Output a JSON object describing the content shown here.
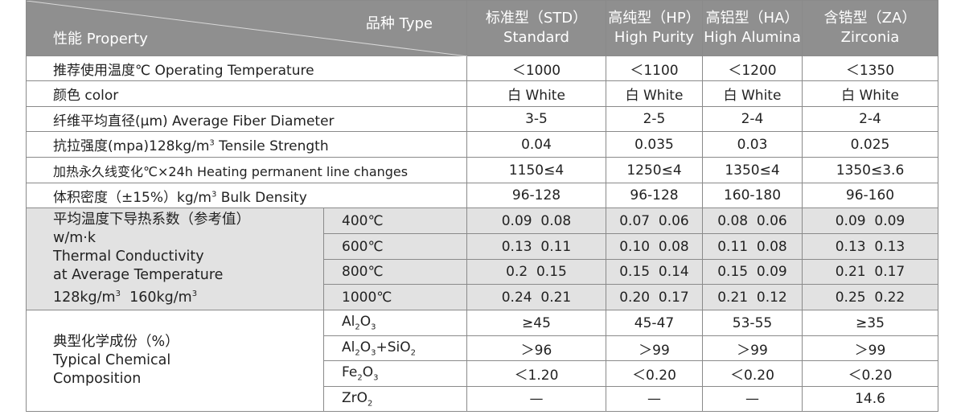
{
  "header": {
    "type_label": "品种 Type",
    "property_label": "性能 Property",
    "columns": [
      {
        "zh": "标准型（STD）",
        "en": "Standard"
      },
      {
        "zh": "高纯型（HP）",
        "en": "High Purity"
      },
      {
        "zh": "高铝型（HA）",
        "en": "High Alumina"
      },
      {
        "zh": "含锆型（ZA）",
        "en": "Zirconia"
      }
    ]
  },
  "rows": [
    {
      "prop": "推荐使用温度℃ Operating Temperature",
      "values": [
        "＜1000",
        "＜1100",
        "＜1200",
        "＜1350"
      ]
    },
    {
      "prop": "颜色 color",
      "values": [
        "白 White",
        "白 White",
        "白 White",
        "白 White"
      ]
    },
    {
      "prop": "纤维平均直径(μm) Average Fiber Diameter",
      "values": [
        "3-5",
        "2-5",
        "2-4",
        "2-4"
      ]
    },
    {
      "prop_pre": "抗拉强度(mpa)128kg/m",
      "prop_sup": "3",
      "prop_post": " Tensile Strength",
      "values": [
        "0.04",
        "0.035",
        "0.03",
        "0.025"
      ]
    },
    {
      "prop": "加热永久线变化℃×24h  Heating permanent line changes",
      "values": [
        "1150≤4",
        "1250≤4",
        "1350≤4",
        "1350≤3.6"
      ]
    },
    {
      "prop_pre": "体积密度（±15%）kg/m",
      "prop_sup": "3",
      "prop_post": "  Bulk Density",
      "values": [
        "96-128",
        "96-128",
        "160-180",
        "96-160"
      ]
    }
  ],
  "thermal": {
    "label_zh": "平均温度下导热系数（参考值）",
    "label_unit": "w/m·k",
    "label_en1": "Thermal Conductivity",
    "label_en2": "at Average Temperature",
    "label_d1": "128kg/m",
    "label_d1_sup": "3",
    "label_d2": "  160kg/m",
    "label_d2_sup": "3",
    "rows": [
      {
        "temp": "400℃",
        "values": [
          "0.09  0.08",
          "0.07  0.06",
          "0.08  0.06",
          "0.09  0.09"
        ]
      },
      {
        "temp": "600℃",
        "values": [
          "0.13  0.11",
          "0.10  0.08",
          "0.11  0.08",
          "0.13  0.13"
        ]
      },
      {
        "temp": "800℃",
        "values": [
          "0.2  0.15",
          "0.15  0.14",
          "0.15  0.09",
          "0.21  0.17"
        ]
      },
      {
        "temp": "1000℃",
        "values": [
          "0.24  0.21",
          "0.20  0.17",
          "0.21  0.12",
          "0.25  0.22"
        ]
      }
    ]
  },
  "chemical": {
    "label_zh": "典型化学成份（%）",
    "label_en1": "Typical Chemical",
    "label_en2": "Composition",
    "rows": [
      {
        "comp_a": "Al",
        "comp_a_sub": "2",
        "comp_b": "O",
        "comp_b_sub": "3",
        "comp_c": "",
        "comp_c_sub": "",
        "comp_d": "",
        "comp_d_sub": "",
        "values": [
          "≥45",
          "45-47",
          "53-55",
          "≥35"
        ]
      },
      {
        "comp_a": "Al",
        "comp_a_sub": "2",
        "comp_b": "O",
        "comp_b_sub": "3",
        "comp_c": "+SiO",
        "comp_c_sub": "2",
        "comp_d": "",
        "comp_d_sub": "",
        "values": [
          "＞96",
          "＞99",
          "＞99",
          "＞99"
        ]
      },
      {
        "comp_a": "Fe",
        "comp_a_sub": "2",
        "comp_b": "O",
        "comp_b_sub": "3",
        "comp_c": "",
        "comp_c_sub": "",
        "comp_d": "",
        "comp_d_sub": "",
        "values": [
          "＜1.20",
          "＜0.20",
          "＜0.20",
          "＜0.20"
        ]
      },
      {
        "comp_a": "ZrO",
        "comp_a_sub": "2",
        "comp_b": "",
        "comp_b_sub": "",
        "comp_c": "",
        "comp_c_sub": "",
        "comp_d": "",
        "comp_d_sub": "",
        "values": [
          "—",
          "—",
          "—",
          "14.6"
        ]
      }
    ]
  }
}
